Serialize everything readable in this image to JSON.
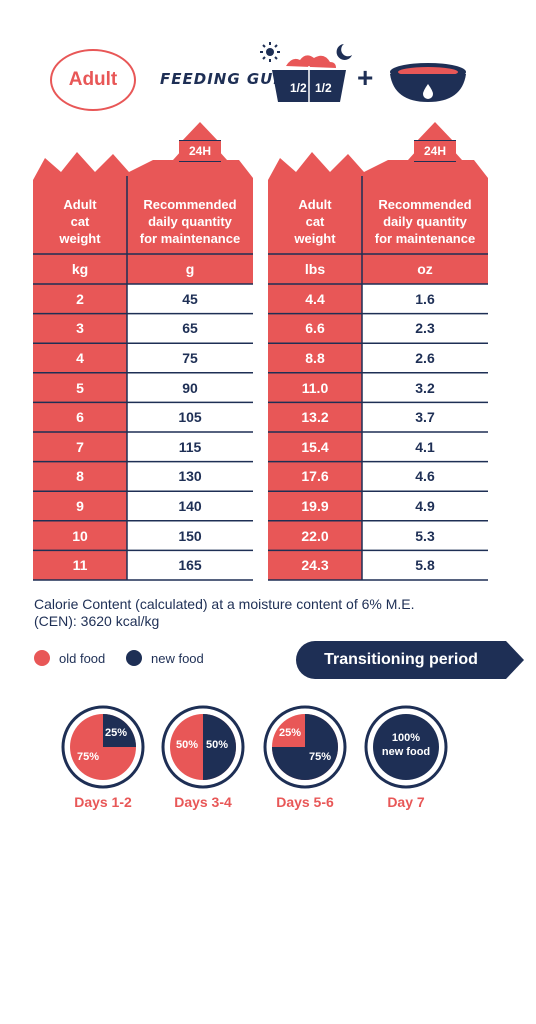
{
  "header": {
    "badge": "Adult",
    "title": "FEEDING GUIDE",
    "half_left": "1/2",
    "half_right": "1/2",
    "plus": "+"
  },
  "tables": [
    {
      "tag": "24H",
      "headers": [
        "Adult\ncat\nweight",
        "Recommended\ndaily quantity\nfor maintenance"
      ],
      "units": [
        "kg",
        "g"
      ],
      "rows": [
        [
          "2",
          "45"
        ],
        [
          "3",
          "65"
        ],
        [
          "4",
          "75"
        ],
        [
          "5",
          "90"
        ],
        [
          "6",
          "105"
        ],
        [
          "7",
          "115"
        ],
        [
          "8",
          "130"
        ],
        [
          "9",
          "140"
        ],
        [
          "10",
          "150"
        ],
        [
          "11",
          "165"
        ]
      ]
    },
    {
      "tag": "24H",
      "headers": [
        "Adult\ncat\nweight",
        "Recommended\ndaily quantity\nfor maintenance"
      ],
      "units": [
        "lbs",
        "oz"
      ],
      "rows": [
        [
          "4.4",
          "1.6"
        ],
        [
          "6.6",
          "2.3"
        ],
        [
          "8.8",
          "2.6"
        ],
        [
          "11.0",
          "3.2"
        ],
        [
          "13.2",
          "3.7"
        ],
        [
          "15.4",
          "4.1"
        ],
        [
          "17.6",
          "4.6"
        ],
        [
          "19.9",
          "4.9"
        ],
        [
          "22.0",
          "5.3"
        ],
        [
          "24.3",
          "5.8"
        ]
      ]
    }
  ],
  "calorie": "Calorie Content (calculated) at a moisture content of 6% M.E. (CEN): 3620 kcal/kg",
  "legend": {
    "old": "old food",
    "new": "new food"
  },
  "transition_label": "Transitioning period",
  "transition": [
    {
      "day": "Days 1-2",
      "new_pct": 25,
      "labels": [
        "25%",
        "75%"
      ]
    },
    {
      "day": "Days 3-4",
      "new_pct": 50,
      "labels": [
        "50%",
        "50%"
      ]
    },
    {
      "day": "Days 5-6",
      "new_pct": 75,
      "labels": [
        "25%",
        "75%"
      ]
    },
    {
      "day": "Day 7",
      "new_pct": 100,
      "labels": [
        "100%\nnew food"
      ]
    }
  ],
  "colors": {
    "red": "#e85757",
    "navy": "#1e2f55",
    "line": "#1e2f55"
  }
}
